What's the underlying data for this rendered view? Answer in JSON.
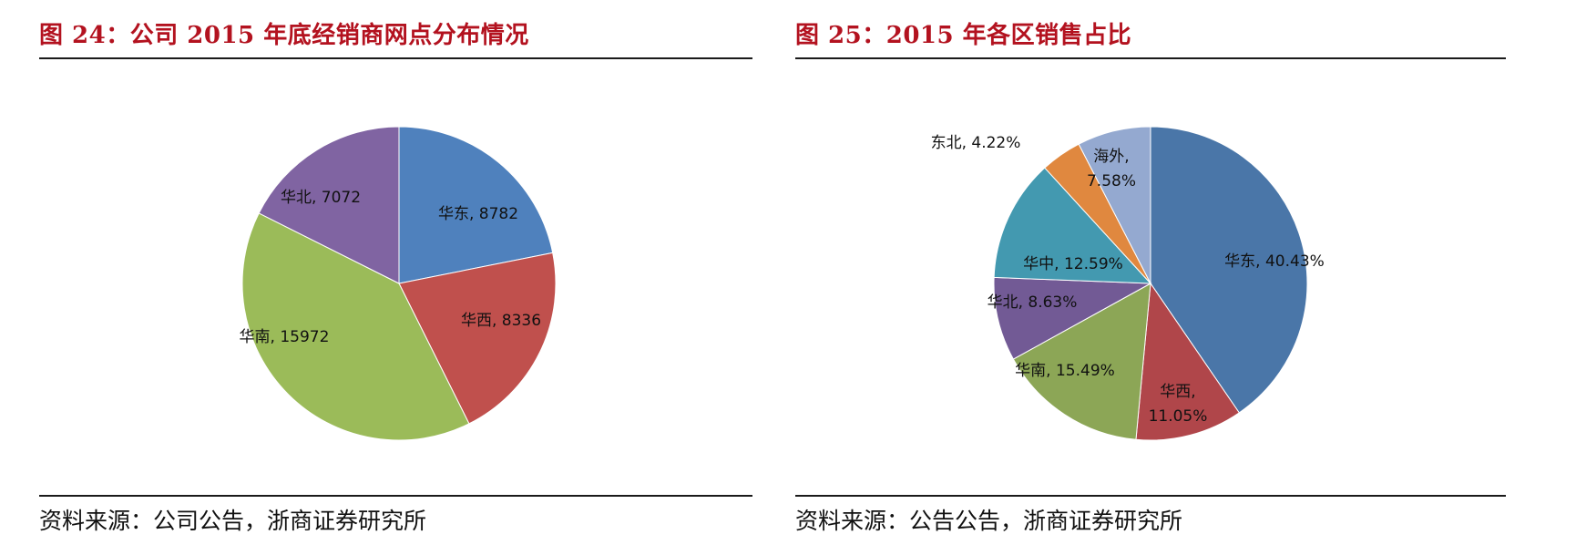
{
  "figures": [
    {
      "title": "图 24：公司 2015 年底经销商网点分布情况",
      "source": "资料来源：公司公告，浙商证券研究所"
    },
    {
      "title": "图 25：2015 年各区销售占比",
      "source": "资料来源：公告公告，浙商证券研究所"
    }
  ],
  "chart_data": [
    {
      "type": "pie",
      "title": "图 24：公司 2015 年底经销商网点分布情况",
      "categories": [
        "华东",
        "华西",
        "华南",
        "华北"
      ],
      "values": [
        8782,
        8336,
        15972,
        7072
      ],
      "colors": [
        "#4f81bd",
        "#c0504d",
        "#9bbb59",
        "#8064a2"
      ],
      "labels": [
        "华东, 8782",
        "华西, 8336",
        "华南, 15972",
        "华北, 7072"
      ],
      "start_angle": "12 o'clock, clockwise",
      "legend": "none (data labels inside slices)"
    },
    {
      "type": "pie",
      "title": "图 25：2015 年各区销售占比",
      "categories": [
        "华东",
        "华西",
        "华南",
        "华北",
        "华中",
        "东北",
        "海外"
      ],
      "values": [
        40.43,
        11.05,
        15.49,
        8.63,
        12.59,
        4.22,
        7.58
      ],
      "unit": "%",
      "colors": [
        "#4a76a8",
        "#b0464a",
        "#8ca656",
        "#725a95",
        "#4399b0",
        "#e0883f",
        "#94a9d0"
      ],
      "labels": [
        "华东, 40.43%",
        "华西, 11.05%",
        "华南, 15.49%",
        "华北, 8.63%",
        "华中, 12.59%",
        "东北, 4.22%",
        "海外, 7.58%"
      ],
      "start_angle": "12 o'clock, clockwise",
      "legend": "none (data labels inside/outside slices)"
    }
  ]
}
